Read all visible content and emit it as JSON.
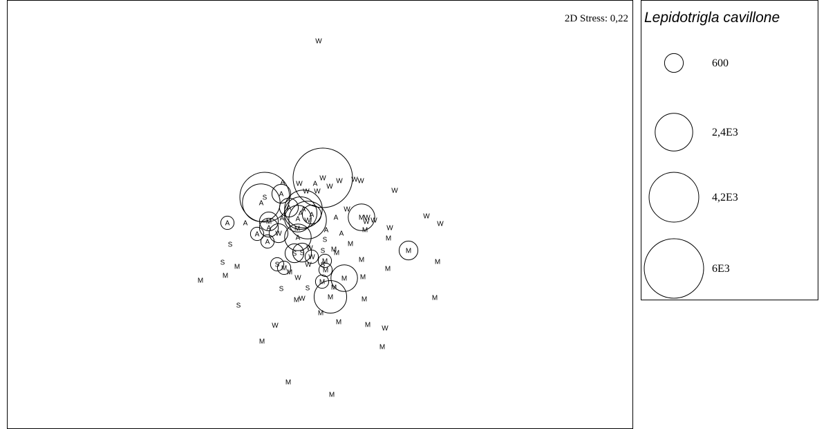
{
  "chart_data": {
    "type": "scatter",
    "title": "",
    "xlabel": "",
    "ylabel": "",
    "stress_label": "2D Stress: 0,22",
    "grid": false,
    "legend": {
      "title": "Lepidotrigla cavillone",
      "placement": "right",
      "entries": [
        {
          "label": "600",
          "value": 600
        },
        {
          "label": "2,4E3",
          "value": 2400
        },
        {
          "label": "4,2E3",
          "value": 4200
        },
        {
          "label": "6E3",
          "value": 6000
        }
      ]
    },
    "points": [
      {
        "x": 450,
        "y": 58,
        "label": "W",
        "value": 0
      },
      {
        "x": 560,
        "y": 274,
        "label": "W",
        "value": 0
      },
      {
        "x": 511,
        "y": 260,
        "label": "W",
        "value": 0
      },
      {
        "x": 502,
        "y": 258,
        "label": "W",
        "value": 0
      },
      {
        "x": 480,
        "y": 260,
        "label": "W",
        "value": 0
      },
      {
        "x": 456,
        "y": 256,
        "label": "W",
        "value": 6000
      },
      {
        "x": 445,
        "y": 264,
        "label": "A",
        "value": 0
      },
      {
        "x": 422,
        "y": 264,
        "label": "W",
        "value": 0
      },
      {
        "x": 432,
        "y": 275,
        "label": "W",
        "value": 0
      },
      {
        "x": 448,
        "y": 275,
        "label": "W",
        "value": 0
      },
      {
        "x": 466,
        "y": 268,
        "label": "W",
        "value": 0
      },
      {
        "x": 398,
        "y": 262,
        "label": "A",
        "value": 0
      },
      {
        "x": 396,
        "y": 279,
        "label": "A",
        "value": 600
      },
      {
        "x": 372,
        "y": 284,
        "label": "S",
        "value": 4200
      },
      {
        "x": 367,
        "y": 292,
        "label": "A",
        "value": 2400
      },
      {
        "x": 407,
        "y": 299,
        "label": "A",
        "value": 600
      },
      {
        "x": 428,
        "y": 301,
        "label": "A",
        "value": 2400
      },
      {
        "x": 424,
        "y": 307,
        "label": "A",
        "value": 1800
      },
      {
        "x": 440,
        "y": 309,
        "label": "A",
        "value": 600
      },
      {
        "x": 434,
        "y": 317,
        "label": "W",
        "value": 2400
      },
      {
        "x": 420,
        "y": 315,
        "label": "A",
        "value": 1200
      },
      {
        "x": 491,
        "y": 301,
        "label": "W",
        "value": 0
      },
      {
        "x": 519,
        "y": 319,
        "label": "W",
        "value": 0
      },
      {
        "x": 512,
        "y": 313,
        "label": "M",
        "value": 1200
      },
      {
        "x": 520,
        "y": 313,
        "label": "W",
        "value": 0
      },
      {
        "x": 530,
        "y": 317,
        "label": "W",
        "value": 0
      },
      {
        "x": 475,
        "y": 313,
        "label": "A",
        "value": 0
      },
      {
        "x": 606,
        "y": 311,
        "label": "W",
        "value": 0
      },
      {
        "x": 626,
        "y": 322,
        "label": "W",
        "value": 0
      },
      {
        "x": 553,
        "y": 328,
        "label": "W",
        "value": 0
      },
      {
        "x": 551,
        "y": 343,
        "label": "M",
        "value": 0
      },
      {
        "x": 517,
        "y": 331,
        "label": "M",
        "value": 0
      },
      {
        "x": 461,
        "y": 331,
        "label": "A",
        "value": 0
      },
      {
        "x": 483,
        "y": 336,
        "label": "A",
        "value": 0
      },
      {
        "x": 459,
        "y": 345,
        "label": "S",
        "value": 0
      },
      {
        "x": 496,
        "y": 351,
        "label": "M",
        "value": 0
      },
      {
        "x": 472,
        "y": 359,
        "label": "M",
        "value": 0
      },
      {
        "x": 456,
        "y": 361,
        "label": "S",
        "value": 0
      },
      {
        "x": 476,
        "y": 364,
        "label": "M",
        "value": 0
      },
      {
        "x": 419,
        "y": 329,
        "label": "M",
        "value": 0
      },
      {
        "x": 397,
        "y": 314,
        "label": "A",
        "value": 0
      },
      {
        "x": 378,
        "y": 319,
        "label": "M",
        "value": 600
      },
      {
        "x": 378,
        "y": 328,
        "label": "A",
        "value": 600
      },
      {
        "x": 392,
        "y": 336,
        "label": "W",
        "value": 600
      },
      {
        "x": 361,
        "y": 337,
        "label": "A",
        "value": 300
      },
      {
        "x": 376,
        "y": 348,
        "label": "A",
        "value": 300
      },
      {
        "x": 344,
        "y": 321,
        "label": "A",
        "value": 0
      },
      {
        "x": 318,
        "y": 321,
        "label": "A",
        "value": 300
      },
      {
        "x": 322,
        "y": 352,
        "label": "S",
        "value": 0
      },
      {
        "x": 420,
        "y": 342,
        "label": "A",
        "value": 1200
      },
      {
        "x": 415,
        "y": 365,
        "label": "S",
        "value": 600
      },
      {
        "x": 426,
        "y": 364,
        "label": "S",
        "value": 600
      },
      {
        "x": 437,
        "y": 357,
        "label": "W",
        "value": 0
      },
      {
        "x": 440,
        "y": 370,
        "label": "W",
        "value": 300
      },
      {
        "x": 435,
        "y": 381,
        "label": "W",
        "value": 0
      },
      {
        "x": 456,
        "y": 381,
        "label": "S",
        "value": 0
      },
      {
        "x": 459,
        "y": 376,
        "label": "M",
        "value": 300
      },
      {
        "x": 460,
        "y": 389,
        "label": "M",
        "value": 300
      },
      {
        "x": 512,
        "y": 374,
        "label": "M",
        "value": 0
      },
      {
        "x": 550,
        "y": 387,
        "label": "M",
        "value": 0
      },
      {
        "x": 580,
        "y": 361,
        "label": "M",
        "value": 600
      },
      {
        "x": 622,
        "y": 377,
        "label": "M",
        "value": 0
      },
      {
        "x": 311,
        "y": 378,
        "label": "S",
        "value": 0
      },
      {
        "x": 332,
        "y": 384,
        "label": "M",
        "value": 0
      },
      {
        "x": 390,
        "y": 381,
        "label": "S",
        "value": 300
      },
      {
        "x": 400,
        "y": 386,
        "label": "M",
        "value": 300
      },
      {
        "x": 408,
        "y": 392,
        "label": "M",
        "value": 0
      },
      {
        "x": 420,
        "y": 400,
        "label": "W",
        "value": 0
      },
      {
        "x": 279,
        "y": 404,
        "label": "M",
        "value": 0
      },
      {
        "x": 315,
        "y": 397,
        "label": "M",
        "value": 0
      },
      {
        "x": 487,
        "y": 401,
        "label": "M",
        "value": 1200
      },
      {
        "x": 514,
        "y": 399,
        "label": "M",
        "value": 0
      },
      {
        "x": 455,
        "y": 406,
        "label": "M",
        "value": 300
      },
      {
        "x": 472,
        "y": 414,
        "label": "M",
        "value": 0
      },
      {
        "x": 434,
        "y": 415,
        "label": "S",
        "value": 0
      },
      {
        "x": 396,
        "y": 416,
        "label": "S",
        "value": 0
      },
      {
        "x": 426,
        "y": 430,
        "label": "W",
        "value": 0
      },
      {
        "x": 418,
        "y": 432,
        "label": "M",
        "value": 0
      },
      {
        "x": 467,
        "y": 428,
        "label": "M",
        "value": 1800
      },
      {
        "x": 516,
        "y": 431,
        "label": "M",
        "value": 0
      },
      {
        "x": 618,
        "y": 429,
        "label": "M",
        "value": 0
      },
      {
        "x": 334,
        "y": 440,
        "label": "S",
        "value": 0
      },
      {
        "x": 453,
        "y": 451,
        "label": "M",
        "value": 0
      },
      {
        "x": 479,
        "y": 464,
        "label": "M",
        "value": 0
      },
      {
        "x": 387,
        "y": 469,
        "label": "W",
        "value": 0
      },
      {
        "x": 521,
        "y": 468,
        "label": "M",
        "value": 0
      },
      {
        "x": 546,
        "y": 473,
        "label": "W",
        "value": 0
      },
      {
        "x": 368,
        "y": 492,
        "label": "M",
        "value": 0
      },
      {
        "x": 542,
        "y": 500,
        "label": "M",
        "value": 0
      },
      {
        "x": 406,
        "y": 551,
        "label": "M",
        "value": 0
      },
      {
        "x": 469,
        "y": 569,
        "label": "M",
        "value": 0
      }
    ],
    "x_domain": [
      0,
      906
    ],
    "y_domain": [
      0,
      620
    ]
  }
}
